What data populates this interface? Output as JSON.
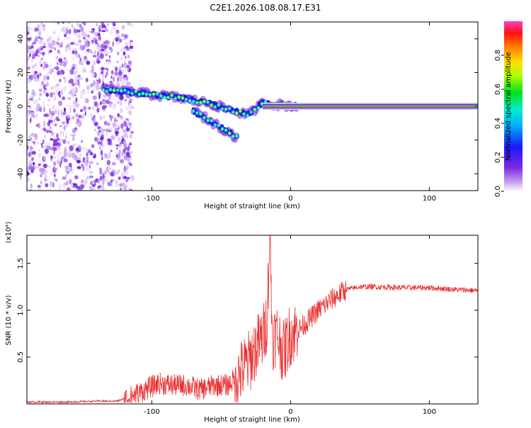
{
  "title": "C2E1.2026.108.08.17.E31",
  "chart_data": [
    {
      "type": "heatmap",
      "name": "spectrogram",
      "xlabel": "Height of straight line (km)",
      "ylabel": "Frequency (Hz)",
      "xlim": [
        -190,
        135
      ],
      "ylim": [
        -50,
        50
      ],
      "xticks": [
        -100,
        0,
        100
      ],
      "yticks": [
        -40,
        -20,
        0,
        20,
        40
      ],
      "colorbar": {
        "label": "Normalized spectral amplitude",
        "range": [
          0,
          1
        ],
        "ticks": [
          0.0,
          0.2,
          0.4,
          0.6,
          0.8
        ]
      },
      "features": [
        {
          "desc": "noise region",
          "x_range": [
            -190,
            -118
          ],
          "y_range": [
            -50,
            50
          ]
        },
        {
          "desc": "main descending track",
          "x": [
            -135,
            -110,
            -80,
            -60,
            -40,
            -30,
            -20,
            -10,
            5
          ],
          "y": [
            10,
            8,
            5,
            2,
            -3,
            -5,
            2,
            1,
            0
          ]
        },
        {
          "desc": "lower branch",
          "x": [
            -70,
            -55,
            -45,
            -38
          ],
          "y": [
            -3,
            -10,
            -15,
            -19
          ]
        },
        {
          "desc": "constant tone",
          "x_range": [
            -20,
            135
          ],
          "y": 0
        }
      ]
    },
    {
      "type": "line",
      "name": "snr",
      "xlabel": "Height of straight line (km)",
      "ylabel": "SNR (10 * v/v)",
      "scale_label": "(x10⁴)",
      "xlim": [
        -190,
        135
      ],
      "ylim": [
        0,
        1.8
      ],
      "xticks": [
        -100,
        0,
        100
      ],
      "yticks": [
        0.5,
        1.0,
        1.5
      ],
      "color": "#e8302f",
      "series": [
        {
          "name": "SNR",
          "x": [
            -190,
            -160,
            -140,
            -125,
            -115,
            -105,
            -95,
            -85,
            -75,
            -65,
            -55,
            -45,
            -38,
            -30,
            -25,
            -20,
            -17,
            -15,
            -13,
            -10,
            -5,
            0,
            5,
            10,
            20,
            30,
            40,
            50,
            60,
            80,
            100,
            120,
            135
          ],
          "y": [
            0.02,
            0.02,
            0.03,
            0.03,
            0.08,
            0.15,
            0.22,
            0.2,
            0.2,
            0.15,
            0.2,
            0.2,
            0.3,
            0.45,
            0.6,
            0.7,
            0.9,
            1.8,
            0.7,
            0.75,
            0.55,
            0.75,
            0.78,
            0.85,
            1.0,
            1.12,
            1.22,
            1.25,
            1.25,
            1.24,
            1.24,
            1.22,
            1.21
          ]
        }
      ]
    }
  ]
}
